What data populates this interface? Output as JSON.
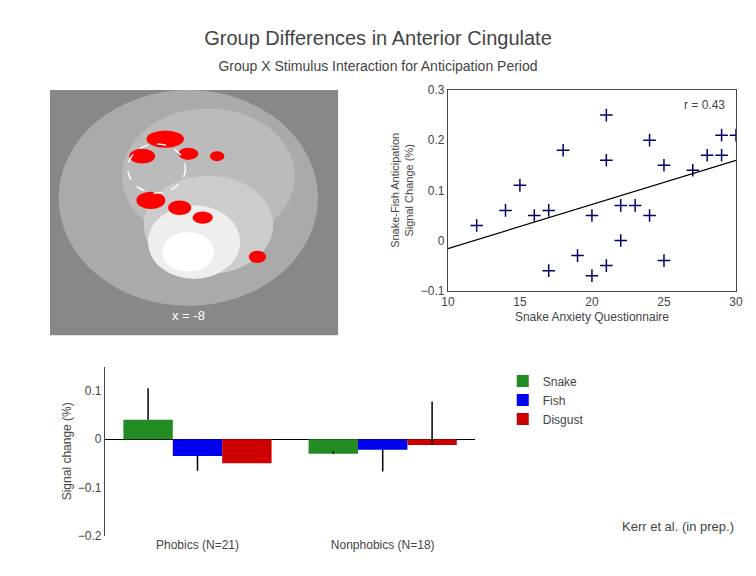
{
  "title": "Group Differences in Anterior Cingulate",
  "subtitle": "Group X Stimulus Interaction for Anticipation Period",
  "annotations": [
    "x = -8",
    "Kerr et al. (in prep.)"
  ],
  "chart_data": [
    {
      "type": "scatter",
      "xlabel": "Snake Anxiety Questionnaire",
      "ylabel": "Snake-Fish Anticipation\nSignal Change (%)",
      "annotations": [
        "r = 0.43"
      ],
      "xlim": [
        10,
        30
      ],
      "xticks": [
        10,
        15,
        20,
        25,
        30
      ],
      "ylim": [
        -0.1,
        0.3
      ],
      "yticks": [
        -0.1,
        0,
        0.1,
        0.2,
        0.3
      ],
      "grid": false,
      "series": [
        {
          "type": "scatter",
          "marker": "plus",
          "color": "#000066",
          "x": [
            12,
            14,
            15,
            16,
            17,
            17,
            18,
            19,
            20,
            20,
            21,
            21,
            21,
            22,
            22,
            23,
            24,
            24,
            25,
            25,
            27,
            28,
            29,
            29,
            30
          ],
          "values": [
            0.03,
            0.06,
            0.11,
            0.05,
            -0.06,
            0.06,
            0.18,
            -0.03,
            -0.07,
            0.05,
            0.25,
            -0.05,
            0.16,
            0.07,
            0.0,
            0.07,
            0.2,
            0.05,
            -0.04,
            0.15,
            0.14,
            0.17,
            0.21,
            0.17,
            0.21
          ]
        },
        {
          "type": "line",
          "line_style": "solid",
          "color": "#000000",
          "x": [
            10,
            30
          ],
          "values": [
            -0.0161,
            0.1598
          ]
        }
      ]
    },
    {
      "type": "bar",
      "ylabel": "Signal change (%)",
      "categories": [
        "Phobics (N=21)",
        "Nonphobics (N=18)"
      ],
      "ylim": [
        -0.2,
        0.15
      ],
      "yticks": [
        -0.2,
        -0.1,
        0,
        0.1
      ],
      "grid": false,
      "legend": "right",
      "series": [
        {
          "name": "Snake",
          "color": "#228B22",
          "values": [
            0.04,
            -0.03
          ],
          "errors_up": [
            0.065,
            0.005
          ],
          "errors_down": [
            0,
            0
          ]
        },
        {
          "name": "Fish",
          "color": "#0000EE",
          "values": [
            -0.035,
            -0.022
          ],
          "errors_up": [
            0,
            0
          ],
          "errors_down": [
            0.03,
            0.045
          ]
        },
        {
          "name": "Disgust",
          "color": "#CC0000",
          "values": [
            -0.05,
            -0.012
          ],
          "errors_up": [
            0,
            0.09
          ],
          "errors_down": [
            0,
            0
          ]
        }
      ]
    }
  ]
}
